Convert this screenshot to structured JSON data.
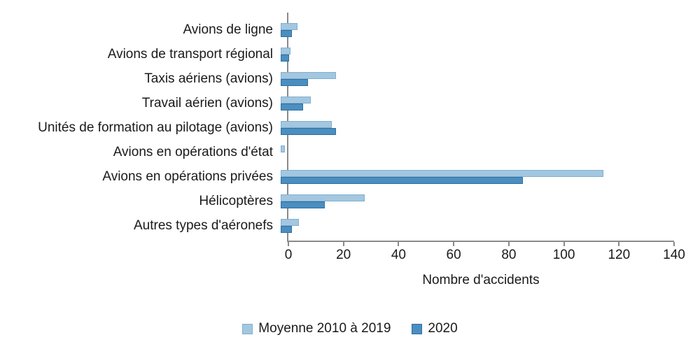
{
  "chart_data": {
    "type": "bar",
    "orientation": "horizontal",
    "title": "",
    "xlabel": "Nombre d'accidents",
    "ylabel": "",
    "xlim": [
      0,
      140
    ],
    "xticks": [
      0,
      20,
      40,
      60,
      80,
      100,
      120,
      140
    ],
    "grid": false,
    "legend_position": "bottom",
    "categories": [
      "Avions de ligne",
      "Avions de transport régional",
      "Taxis aériens (avions)",
      "Travail aérien (avions)",
      "Unités de formation au pilotage (avions)",
      "Avions en opérations d'état",
      "Avions en opérations privées",
      "Hélicoptères",
      "Autres types d'aéronefs"
    ],
    "series": [
      {
        "name": "Moyenne 2010 à 2019",
        "color": "#a3c7e0",
        "border_color": "#82afd0",
        "values": [
          6,
          3.5,
          20,
          11,
          18.5,
          1.5,
          117,
          30.5,
          6.5
        ]
      },
      {
        "name": "2020",
        "color": "#4b8ec0",
        "border_color": "#2f6fa2",
        "values": [
          4,
          3,
          10,
          8,
          20,
          0,
          88,
          16,
          4
        ]
      }
    ]
  },
  "colors": {
    "axis": "#8a8a8a",
    "text": "#1a1a1a",
    "background": "#ffffff"
  }
}
